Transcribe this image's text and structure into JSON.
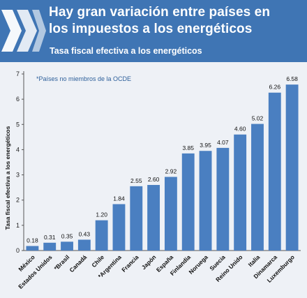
{
  "header": {
    "title_line1": "Hay gran variación entre países en",
    "title_line2": "los impuestos a los energéticos",
    "subtitle": "Tasa fiscal efectiva a los energéticos"
  },
  "colors": {
    "banner": "#3f75b4",
    "bar": "#4a7fc1",
    "note": "#2d5f9a"
  },
  "chart_data": {
    "type": "bar",
    "title": "Tasa fiscal efectiva a los energéticos",
    "ylabel": "Tasa fiscal efectiva a los energéticos",
    "xlabel": "",
    "ylim": [
      0,
      7
    ],
    "yticks": [
      0,
      1,
      2,
      3,
      4,
      5,
      6,
      7
    ],
    "grid": false,
    "annotation": "*Países no miembros de la OCDE",
    "categories": [
      "México",
      "Estados Unidos",
      "*Brasil",
      "Canadá",
      "Chile",
      "*Argentina",
      "Francia",
      "Japón",
      "España",
      "Finlandia",
      "Noruega",
      "Suecia",
      "Reino Unido",
      "Italia",
      "Dinamarca",
      "Luxemburgo"
    ],
    "values": [
      0.18,
      0.31,
      0.35,
      0.43,
      1.2,
      1.84,
      2.55,
      2.6,
      2.92,
      3.85,
      3.95,
      4.07,
      4.6,
      5.02,
      6.26,
      6.58
    ],
    "value_labels": [
      "0.18",
      "0.31",
      "0.35",
      "0.43",
      "1.20",
      "1.84",
      "2.55",
      "2.60",
      "2.92",
      "3.85",
      "3.95",
      "4.07",
      "4.60",
      "5.02",
      "6.26",
      "6.58"
    ]
  }
}
